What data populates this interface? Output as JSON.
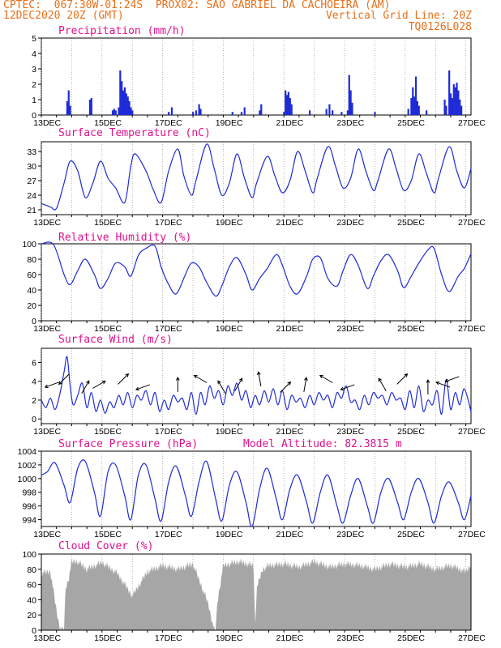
{
  "header": {
    "line1_left": "CPTEC:  067:30W-01:24S  PROX02: SAO GABRIEL DA CACHOEIRA (AM)",
    "line2_left": "12DEC2020 20Z (GMT)",
    "line2_right": "Vertical Grid Line: 20Z",
    "line3_right": "TQ0126L028"
  },
  "colors": {
    "title": "#e0118c",
    "header": "#e8701a",
    "series": "#1f2bd6",
    "cloud": "#a6a6a6",
    "grid": "#888888"
  },
  "x_tick_labels": [
    "13DEC",
    "15DEC",
    "17DEC",
    "19DEC",
    "21DEC",
    "23DEC",
    "25DEC",
    "27DEC"
  ],
  "chart_data": [
    {
      "type": "bar",
      "title": "Precipitation (mm/h)",
      "ylim": [
        0,
        5
      ],
      "yticks": [
        0,
        1,
        2,
        3,
        4,
        5
      ],
      "x_unit": "days since 12DEC 20Z",
      "xlim": [
        0,
        14.17
      ],
      "events": [
        [
          0.85,
          0.9
        ],
        [
          0.9,
          1.6
        ],
        [
          0.95,
          0.6
        ],
        [
          1.6,
          1.0
        ],
        [
          1.65,
          1.1
        ],
        [
          2.35,
          0.3
        ],
        [
          2.4,
          0.4
        ],
        [
          2.45,
          0.3
        ],
        [
          2.55,
          0.5
        ],
        [
          2.6,
          2.9
        ],
        [
          2.65,
          2.2
        ],
        [
          2.7,
          1.6
        ],
        [
          2.75,
          1.8
        ],
        [
          2.8,
          1.4
        ],
        [
          2.85,
          1.2
        ],
        [
          2.9,
          0.9
        ],
        [
          2.95,
          0.5
        ],
        [
          3.0,
          0.3
        ],
        [
          4.2,
          0.2
        ],
        [
          4.3,
          0.5
        ],
        [
          5.0,
          0.2
        ],
        [
          5.1,
          0.3
        ],
        [
          5.2,
          0.7
        ],
        [
          5.25,
          0.4
        ],
        [
          6.6,
          0.2
        ],
        [
          6.7,
          0.5
        ],
        [
          7.2,
          0.3
        ],
        [
          7.25,
          0.7
        ],
        [
          8.0,
          0.2
        ],
        [
          8.05,
          1.6
        ],
        [
          8.1,
          1.3
        ],
        [
          8.15,
          1.5
        ],
        [
          8.2,
          1.1
        ],
        [
          8.25,
          0.7
        ],
        [
          8.85,
          0.3
        ],
        [
          9.4,
          0.4
        ],
        [
          9.5,
          0.7
        ],
        [
          9.6,
          0.3
        ],
        [
          10.1,
          0.3
        ],
        [
          10.15,
          2.6
        ],
        [
          10.2,
          1.6
        ],
        [
          10.25,
          0.8
        ],
        [
          12.1,
          0.4
        ],
        [
          12.2,
          1.1
        ],
        [
          12.25,
          1.8
        ],
        [
          12.3,
          1.2
        ],
        [
          12.35,
          2.5
        ],
        [
          12.4,
          0.9
        ],
        [
          12.45,
          0.6
        ],
        [
          12.7,
          0.3
        ],
        [
          13.3,
          1.0
        ],
        [
          13.35,
          0.6
        ],
        [
          13.45,
          2.9
        ],
        [
          13.5,
          1.4
        ],
        [
          13.55,
          1.1
        ],
        [
          13.6,
          2.0
        ],
        [
          13.65,
          1.8
        ],
        [
          13.7,
          2.1
        ],
        [
          13.75,
          1.6
        ],
        [
          13.8,
          1.0
        ],
        [
          13.85,
          0.6
        ],
        [
          11.0,
          0.2
        ],
        [
          6.3,
          0.2
        ],
        [
          9.9,
          0.2
        ]
      ]
    },
    {
      "type": "line",
      "title": "Surface Temperature (nC)",
      "ylim": [
        20,
        35
      ],
      "yticks": [
        21,
        24,
        27,
        30,
        33
      ],
      "x_unit": "days since 12DEC 20Z",
      "x": [
        0,
        0.3,
        0.5,
        0.75,
        0.95,
        1.2,
        1.45,
        1.7,
        1.95,
        2.2,
        2.45,
        2.75,
        2.95,
        3.1,
        3.45,
        3.7,
        3.95,
        4.2,
        4.5,
        4.7,
        4.95,
        5.1,
        5.45,
        5.7,
        5.95,
        6.2,
        6.45,
        6.7,
        6.95,
        7.1,
        7.45,
        7.7,
        7.95,
        8.2,
        8.45,
        8.7,
        8.95,
        9.1,
        9.45,
        9.7,
        9.95,
        10.2,
        10.45,
        10.7,
        10.95,
        11.1,
        11.45,
        11.7,
        11.95,
        12.2,
        12.45,
        12.7,
        12.95,
        13.1,
        13.45,
        13.7,
        13.95,
        14.17
      ],
      "y": [
        22.3,
        21.6,
        21.3,
        26.5,
        31.0,
        29.0,
        23.5,
        26.5,
        31.0,
        27.5,
        25.5,
        22.5,
        30.0,
        32.5,
        29.0,
        25.0,
        22.5,
        29.0,
        33.5,
        28.0,
        24.0,
        27.0,
        34.5,
        29.5,
        24.0,
        26.5,
        32.5,
        27.5,
        23.5,
        26.5,
        32.0,
        28.0,
        24.5,
        27.0,
        33.0,
        29.0,
        24.5,
        27.5,
        34.0,
        30.0,
        25.5,
        27.5,
        33.5,
        29.0,
        25.0,
        27.0,
        33.5,
        29.5,
        25.0,
        27.0,
        32.5,
        28.5,
        24.5,
        27.5,
        34.0,
        29.0,
        25.5,
        29.5
      ]
    },
    {
      "type": "line",
      "title": "Relative Humidity (%)",
      "ylim": [
        0,
        100
      ],
      "yticks": [
        0,
        20,
        40,
        60,
        80,
        100
      ],
      "x_unit": "days since 12DEC 20Z",
      "x": [
        0,
        0.4,
        0.75,
        0.95,
        1.2,
        1.45,
        1.75,
        1.95,
        2.2,
        2.45,
        2.75,
        2.95,
        3.2,
        3.45,
        3.75,
        3.95,
        4.2,
        4.45,
        4.75,
        4.95,
        5.2,
        5.45,
        5.75,
        5.95,
        6.2,
        6.45,
        6.75,
        6.95,
        7.2,
        7.45,
        7.75,
        7.95,
        8.2,
        8.45,
        8.75,
        8.95,
        9.2,
        9.45,
        9.75,
        9.95,
        10.2,
        10.45,
        10.75,
        10.95,
        11.2,
        11.45,
        11.75,
        11.95,
        12.2,
        12.45,
        12.75,
        12.95,
        13.2,
        13.45,
        13.75,
        13.95,
        14.17
      ],
      "y": [
        100,
        99,
        60,
        47,
        65,
        80,
        60,
        42,
        55,
        75,
        70,
        58,
        85,
        94,
        97,
        70,
        47,
        35,
        60,
        75,
        70,
        50,
        32,
        45,
        70,
        82,
        60,
        40,
        55,
        68,
        86,
        72,
        45,
        35,
        58,
        80,
        82,
        55,
        45,
        65,
        86,
        72,
        42,
        58,
        78,
        86,
        65,
        43,
        58,
        75,
        92,
        94,
        60,
        38,
        58,
        68,
        87
      ]
    },
    {
      "type": "line",
      "title": "Surface Wind (m/s)",
      "ylim": [
        -0.5,
        7.5
      ],
      "yticks": [
        0,
        2,
        4,
        6
      ],
      "x_unit": "days since 12DEC 20Z",
      "x": [
        0,
        0.15,
        0.3,
        0.45,
        0.6,
        0.75,
        0.85,
        0.95,
        1.05,
        1.2,
        1.35,
        1.5,
        1.65,
        1.8,
        1.95,
        2.1,
        2.25,
        2.4,
        2.55,
        2.7,
        2.85,
        3.0,
        3.15,
        3.3,
        3.45,
        3.6,
        3.75,
        3.9,
        4.05,
        4.2,
        4.35,
        4.5,
        4.65,
        4.8,
        4.95,
        5.1,
        5.25,
        5.4,
        5.55,
        5.7,
        5.85,
        6.0,
        6.15,
        6.3,
        6.45,
        6.6,
        6.75,
        6.9,
        7.05,
        7.2,
        7.35,
        7.5,
        7.65,
        7.8,
        7.95,
        8.1,
        8.25,
        8.4,
        8.55,
        8.7,
        8.85,
        9.0,
        9.15,
        9.3,
        9.45,
        9.6,
        9.75,
        9.9,
        10.05,
        10.2,
        10.35,
        10.5,
        10.65,
        10.8,
        10.95,
        11.1,
        11.25,
        11.4,
        11.55,
        11.7,
        11.85,
        12.0,
        12.15,
        12.3,
        12.45,
        12.6,
        12.75,
        12.9,
        13.05,
        13.2,
        13.35,
        13.5,
        13.65,
        13.8,
        13.95,
        14.17
      ],
      "y": [
        2.0,
        1.2,
        2.2,
        1.0,
        2.5,
        5.0,
        6.6,
        3.5,
        1.5,
        2.5,
        3.8,
        1.2,
        2.8,
        0.8,
        2.0,
        0.6,
        1.8,
        1.2,
        2.5,
        1.5,
        2.8,
        1.2,
        2.5,
        2.0,
        3.0,
        1.5,
        2.8,
        0.8,
        2.0,
        1.0,
        2.5,
        1.8,
        2.2,
        1.0,
        2.8,
        0.5,
        2.8,
        1.5,
        3.5,
        2.2,
        3.0,
        1.5,
        3.5,
        2.5,
        3.8,
        2.0,
        3.0,
        1.2,
        2.5,
        1.5,
        3.0,
        1.8,
        3.2,
        1.5,
        3.0,
        1.0,
        2.5,
        1.8,
        2.2,
        1.2,
        2.5,
        1.5,
        2.8,
        2.0,
        2.5,
        1.2,
        2.8,
        2.2,
        3.5,
        1.8,
        2.0,
        1.0,
        2.5,
        1.5,
        2.8,
        2.2,
        2.5,
        1.5,
        2.8,
        2.0,
        2.2,
        1.0,
        3.0,
        1.2,
        3.5,
        0.8,
        2.0,
        1.5,
        3.0,
        0.5,
        4.2,
        1.0,
        2.8,
        1.5,
        3.2,
        0.8
      ],
      "arrows_x": [
        0.35,
        0.75,
        1.45,
        1.9,
        2.7,
        3.35,
        4.5,
        5.25,
        5.95,
        6.5,
        7.2,
        8.05,
        8.7,
        9.4,
        10.1,
        11.25,
        11.9,
        12.75,
        13.25,
        13.55
      ],
      "arrows_dir_deg": [
        200,
        225,
        60,
        30,
        45,
        200,
        90,
        150,
        120,
        60,
        100,
        45,
        80,
        150,
        200,
        120,
        45,
        90,
        160,
        200
      ]
    },
    {
      "type": "line",
      "title": "Surface Pressure (hPa)",
      "annotation": "Model Altitude: 82.3815 m",
      "ylim": [
        993,
        1004
      ],
      "yticks": [
        994,
        996,
        998,
        1000,
        1002,
        1004
      ],
      "x_unit": "days since 12DEC 20Z",
      "x": [
        0,
        0.2,
        0.45,
        0.75,
        0.95,
        1.2,
        1.45,
        1.75,
        1.95,
        2.2,
        2.45,
        2.75,
        2.95,
        3.2,
        3.45,
        3.75,
        3.95,
        4.2,
        4.45,
        4.75,
        4.95,
        5.2,
        5.45,
        5.75,
        5.95,
        6.2,
        6.45,
        6.75,
        6.95,
        7.2,
        7.45,
        7.75,
        7.95,
        8.2,
        8.45,
        8.75,
        8.95,
        9.2,
        9.45,
        9.75,
        9.95,
        10.2,
        10.45,
        10.75,
        10.95,
        11.2,
        11.45,
        11.75,
        11.95,
        12.2,
        12.45,
        12.75,
        12.95,
        13.2,
        13.45,
        13.75,
        13.95,
        14.17
      ],
      "y": [
        1000.5,
        1001.0,
        1002.3,
        999.0,
        996.5,
        1001.5,
        1002.5,
        998.0,
        994.5,
        1001.0,
        1002.0,
        997.5,
        994.0,
        1000.5,
        1002.0,
        997.0,
        993.8,
        999.5,
        1001.8,
        997.5,
        994.5,
        999.5,
        1002.5,
        997.0,
        993.8,
        999.0,
        1001.0,
        996.5,
        993.0,
        998.5,
        1001.5,
        997.0,
        994.0,
        998.5,
        1000.5,
        996.5,
        993.5,
        998.0,
        1000.5,
        996.0,
        993.5,
        997.5,
        1000.0,
        996.0,
        993.5,
        998.0,
        1000.0,
        996.5,
        994.0,
        998.0,
        1000.0,
        996.5,
        993.5,
        997.5,
        999.5,
        996.5,
        994.0,
        997.5
      ]
    },
    {
      "type": "area",
      "title": "Cloud Cover (%)",
      "ylim": [
        0,
        100
      ],
      "yticks": [
        0,
        20,
        40,
        60,
        80,
        100
      ],
      "x_unit": "days since 12DEC 20Z",
      "x": [
        0,
        0.3,
        0.5,
        0.6,
        0.7,
        0.75,
        0.8,
        0.9,
        1.0,
        1.2,
        1.5,
        2.0,
        2.5,
        3.0,
        3.5,
        4.0,
        4.5,
        5.0,
        5.5,
        5.7,
        5.75,
        5.8,
        6.0,
        6.5,
        7.0,
        7.05,
        7.1,
        7.3,
        7.5,
        8.0,
        8.5,
        9.0,
        9.5,
        10.0,
        10.5,
        11.0,
        11.5,
        12.0,
        12.5,
        13.0,
        13.5,
        14.0,
        14.17
      ],
      "y": [
        80,
        82,
        30,
        10,
        5,
        8,
        60,
        72,
        95,
        95,
        85,
        94,
        80,
        50,
        82,
        90,
        85,
        92,
        40,
        5,
        2,
        40,
        90,
        95,
        90,
        5,
        60,
        85,
        90,
        92,
        88,
        95,
        88,
        92,
        90,
        85,
        92,
        88,
        92,
        85,
        90,
        82,
        92
      ]
    }
  ]
}
